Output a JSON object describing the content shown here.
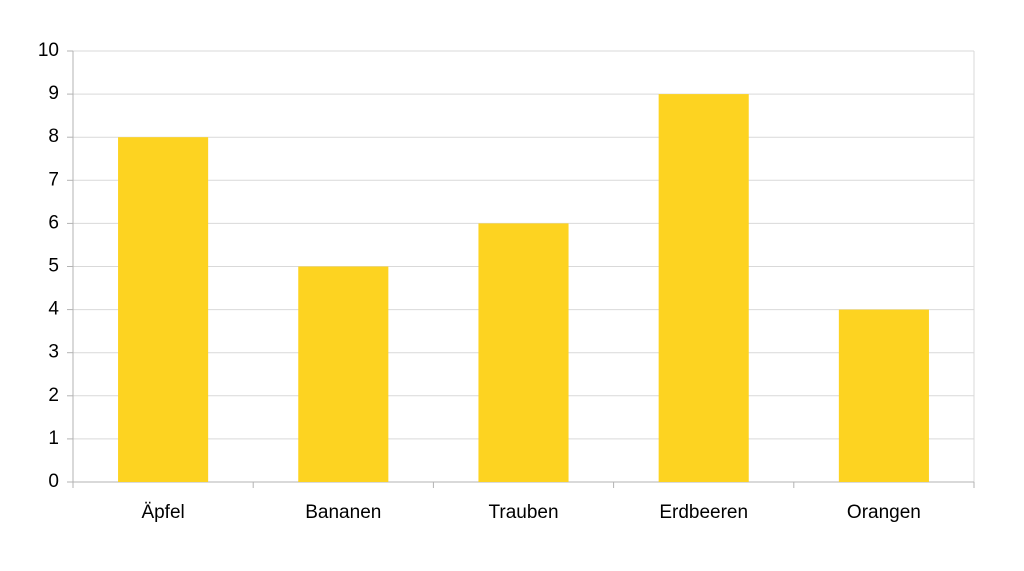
{
  "chart_data": {
    "type": "bar",
    "categories": [
      "Äpfel",
      "Bananen",
      "Trauben",
      "Erdbeeren",
      "Orangen"
    ],
    "values": [
      8,
      5,
      6,
      9,
      4
    ],
    "color": "#fdd321",
    "ylim": [
      0,
      10
    ],
    "yticks": [
      0,
      1,
      2,
      3,
      4,
      5,
      6,
      7,
      8,
      9,
      10
    ],
    "grid": true
  }
}
